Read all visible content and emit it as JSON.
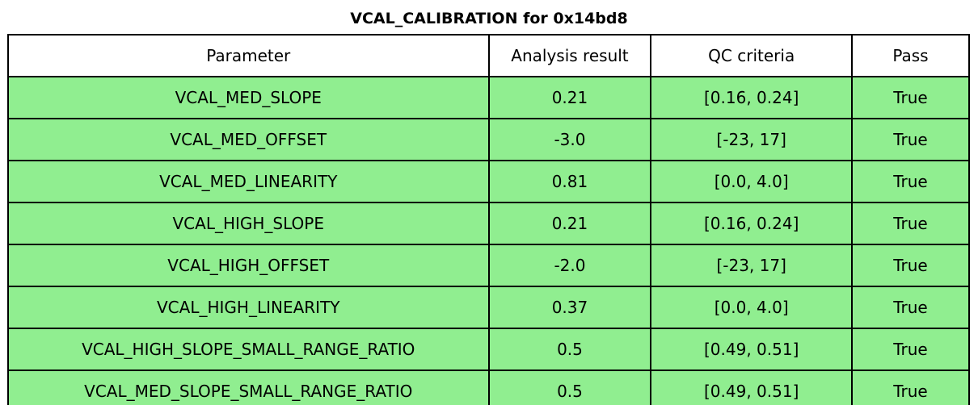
{
  "title": "VCAL_CALIBRATION for 0x14bd8",
  "chart_data": {
    "type": "table",
    "title": "VCAL_CALIBRATION for 0x14bd8",
    "columns": [
      "Parameter",
      "Analysis result",
      "QC criteria",
      "Pass"
    ],
    "rows": [
      [
        "VCAL_MED_SLOPE",
        "0.21",
        "[0.16, 0.24]",
        "True"
      ],
      [
        "VCAL_MED_OFFSET",
        "-3.0",
        "[-23, 17]",
        "True"
      ],
      [
        "VCAL_MED_LINEARITY",
        "0.81",
        "[0.0, 4.0]",
        "True"
      ],
      [
        "VCAL_HIGH_SLOPE",
        "0.21",
        "[0.16, 0.24]",
        "True"
      ],
      [
        "VCAL_HIGH_OFFSET",
        "-2.0",
        "[-23, 17]",
        "True"
      ],
      [
        "VCAL_HIGH_LINEARITY",
        "0.37",
        "[0.0, 4.0]",
        "True"
      ],
      [
        "VCAL_HIGH_SLOPE_SMALL_RANGE_RATIO",
        "0.5",
        "[0.49, 0.51]",
        "True"
      ],
      [
        "VCAL_MED_SLOPE_SMALL_RANGE_RATIO",
        "0.5",
        "[0.49, 0.51]",
        "True"
      ]
    ],
    "colors": {
      "pass_row_bg": "#90ee90",
      "header_bg": "#ffffff",
      "border": "#000000",
      "text": "#000000"
    },
    "layout": {
      "header_row": true,
      "all_rows_pass": true
    }
  }
}
